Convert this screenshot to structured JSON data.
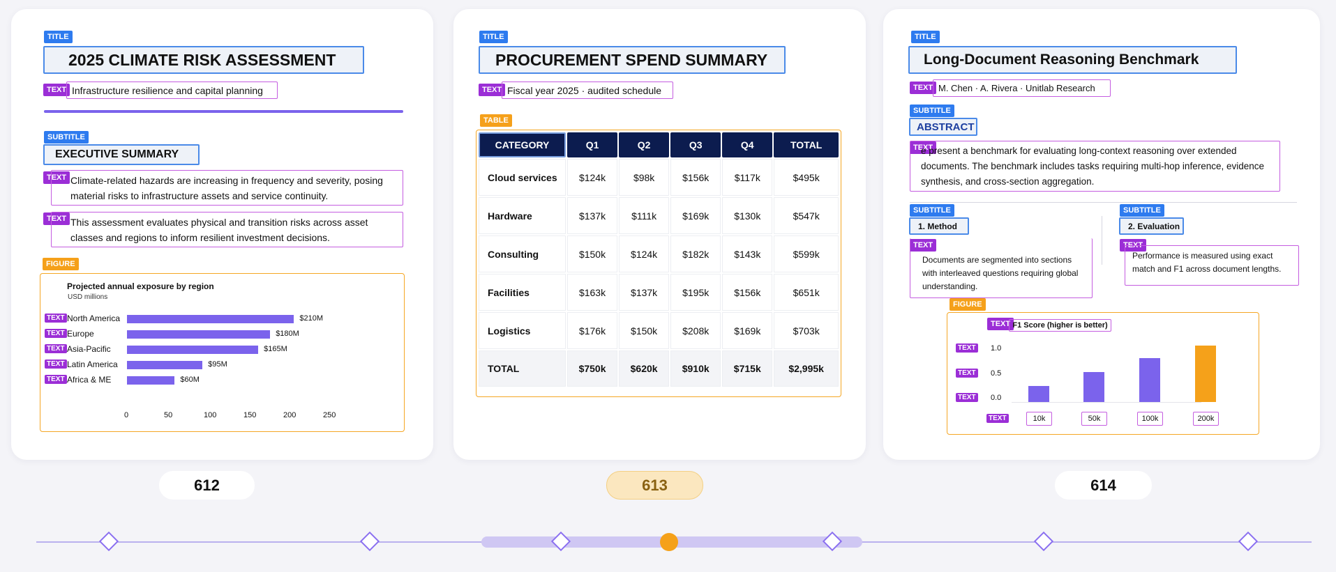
{
  "pages": [
    {
      "number": "612",
      "title_tag": "TITLE",
      "title": "2025 CLIMATE RISK ASSESSMENT",
      "subtitle_text_tag": "TEXT",
      "subtitle_text": "Infrastructure resilience and capital planning",
      "section_tag": "SUBTITLE",
      "section_title": "EXECUTIVE SUMMARY",
      "para1_tag": "TEXT",
      "para1": "Climate-related hazards are increasing in frequency and severity, posing material risks to infrastructure assets and service continuity.",
      "para2_tag": "TEXT",
      "para2": "This assessment evaluates physical and transition risks across asset classes and regions to inform resilient investment decisions.",
      "figure_tag": "FIGURE",
      "chart_tag": "TEXT"
    },
    {
      "number": "613",
      "title_tag": "TITLE",
      "title": "PROCUREMENT SPEND SUMMARY",
      "subtitle_text_tag": "TEXT",
      "subtitle_text": "Fiscal year 2025 · audited schedule",
      "table_tag": "TABLE",
      "table": {
        "headers": [
          "CATEGORY",
          "Q1",
          "Q2",
          "Q3",
          "Q4",
          "TOTAL"
        ],
        "rows": [
          [
            "Cloud services",
            "$124k",
            "$98k",
            "$156k",
            "$117k",
            "$495k"
          ],
          [
            "Hardware",
            "$137k",
            "$111k",
            "$169k",
            "$130k",
            "$547k"
          ],
          [
            "Consulting",
            "$150k",
            "$124k",
            "$182k",
            "$143k",
            "$599k"
          ],
          [
            "Facilities",
            "$163k",
            "$137k",
            "$195k",
            "$156k",
            "$651k"
          ],
          [
            "Logistics",
            "$176k",
            "$150k",
            "$208k",
            "$169k",
            "$703k"
          ]
        ],
        "total": [
          "TOTAL",
          "$750k",
          "$620k",
          "$910k",
          "$715k",
          "$2,995k"
        ]
      }
    },
    {
      "number": "614",
      "title_tag": "TITLE",
      "title": "Long-Document Reasoning Benchmark",
      "authors_tag": "TEXT",
      "authors": "M. Chen · A. Rivera · Unitlab Research",
      "abstract_tag": "SUBTITLE",
      "abstract_title": "ABSTRACT",
      "abstract_text_tag": "TEXT",
      "abstract": "e present a benchmark for evaluating long-context reasoning over extended documents. The benchmark includes tasks requiring multi-hop inference, evidence synthesis, and cross-section aggregation.",
      "method_tag": "SUBTITLE",
      "method_title": "1. Method",
      "method_text_tag": "TEXT",
      "method_text": "Documents are segmented into sections with interleaved questions requiring global understanding.",
      "eval_tag": "SUBTITLE",
      "eval_title": "2. Evaluation",
      "eval_text_tag": "TEXT",
      "eval_text": "Performance is measured using exact match and F1 across document lengths.",
      "figure_tag": "FIGURE",
      "chart_tag": "TEXT"
    }
  ],
  "chart_data": [
    {
      "type": "bar",
      "orientation": "horizontal",
      "title": "Projected annual exposure by region",
      "subtitle": "USD millions",
      "categories": [
        "North America",
        "Europe",
        "Asia-Pacific",
        "Latin America",
        "Africa & ME"
      ],
      "values": [
        210,
        180,
        165,
        95,
        60
      ],
      "value_labels": [
        "$210M",
        "$180M",
        "$165M",
        "$95M",
        "$60M"
      ],
      "xlim": [
        0,
        250
      ],
      "xticks": [
        "0",
        "50",
        "100",
        "150",
        "200",
        "250"
      ],
      "color": "#7b63ec"
    },
    {
      "type": "bar",
      "title": "F1 Score (higher is better)",
      "categories": [
        "10k",
        "50k",
        "100k",
        "200k"
      ],
      "values": [
        0.31,
        0.58,
        0.86,
        1.1
      ],
      "ylim": [
        0,
        1.1
      ],
      "yticks": [
        "0.0",
        "0.5",
        "1.0"
      ],
      "colors": [
        "#7b63ec",
        "#7b63ec",
        "#7b63ec",
        "#f5a11a"
      ]
    }
  ],
  "timeline": {
    "selected_index": 3
  },
  "colors": {
    "accent": "#7b63ec",
    "highlight": "#f5a11a",
    "navy": "#0c1c4f"
  }
}
